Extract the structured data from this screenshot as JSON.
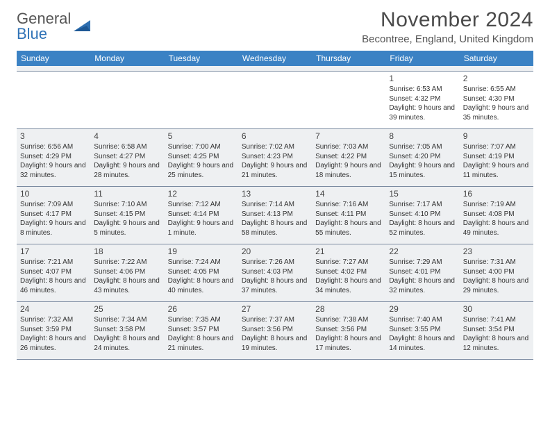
{
  "brand": {
    "line1": "General",
    "line2": "Blue",
    "triangle_color": "#2f6fb0"
  },
  "header": {
    "month_title": "November 2024",
    "location": "Becontree, England, United Kingdom"
  },
  "style": {
    "header_bg": "#3b82c4",
    "header_text": "#ffffff",
    "shaded_bg": "#eef0f2",
    "border_color": "#7a8aa0",
    "text_color": "#333333",
    "title_color": "#4a4a4a"
  },
  "weekdays": [
    "Sunday",
    "Monday",
    "Tuesday",
    "Wednesday",
    "Thursday",
    "Friday",
    "Saturday"
  ],
  "weeks": [
    [
      {
        "blank": true
      },
      {
        "blank": true
      },
      {
        "blank": true
      },
      {
        "blank": true
      },
      {
        "blank": true
      },
      {
        "n": "1",
        "sr": "Sunrise: 6:53 AM",
        "ss": "Sunset: 4:32 PM",
        "dl": "Daylight: 9 hours and 39 minutes."
      },
      {
        "n": "2",
        "sr": "Sunrise: 6:55 AM",
        "ss": "Sunset: 4:30 PM",
        "dl": "Daylight: 9 hours and 35 minutes."
      }
    ],
    [
      {
        "n": "3",
        "sr": "Sunrise: 6:56 AM",
        "ss": "Sunset: 4:29 PM",
        "dl": "Daylight: 9 hours and 32 minutes.",
        "shade": true
      },
      {
        "n": "4",
        "sr": "Sunrise: 6:58 AM",
        "ss": "Sunset: 4:27 PM",
        "dl": "Daylight: 9 hours and 28 minutes.",
        "shade": true
      },
      {
        "n": "5",
        "sr": "Sunrise: 7:00 AM",
        "ss": "Sunset: 4:25 PM",
        "dl": "Daylight: 9 hours and 25 minutes.",
        "shade": true
      },
      {
        "n": "6",
        "sr": "Sunrise: 7:02 AM",
        "ss": "Sunset: 4:23 PM",
        "dl": "Daylight: 9 hours and 21 minutes.",
        "shade": true
      },
      {
        "n": "7",
        "sr": "Sunrise: 7:03 AM",
        "ss": "Sunset: 4:22 PM",
        "dl": "Daylight: 9 hours and 18 minutes.",
        "shade": true
      },
      {
        "n": "8",
        "sr": "Sunrise: 7:05 AM",
        "ss": "Sunset: 4:20 PM",
        "dl": "Daylight: 9 hours and 15 minutes.",
        "shade": true
      },
      {
        "n": "9",
        "sr": "Sunrise: 7:07 AM",
        "ss": "Sunset: 4:19 PM",
        "dl": "Daylight: 9 hours and 11 minutes.",
        "shade": true
      }
    ],
    [
      {
        "n": "10",
        "sr": "Sunrise: 7:09 AM",
        "ss": "Sunset: 4:17 PM",
        "dl": "Daylight: 9 hours and 8 minutes.",
        "shade": true
      },
      {
        "n": "11",
        "sr": "Sunrise: 7:10 AM",
        "ss": "Sunset: 4:15 PM",
        "dl": "Daylight: 9 hours and 5 minutes.",
        "shade": true
      },
      {
        "n": "12",
        "sr": "Sunrise: 7:12 AM",
        "ss": "Sunset: 4:14 PM",
        "dl": "Daylight: 9 hours and 1 minute.",
        "shade": true
      },
      {
        "n": "13",
        "sr": "Sunrise: 7:14 AM",
        "ss": "Sunset: 4:13 PM",
        "dl": "Daylight: 8 hours and 58 minutes.",
        "shade": true
      },
      {
        "n": "14",
        "sr": "Sunrise: 7:16 AM",
        "ss": "Sunset: 4:11 PM",
        "dl": "Daylight: 8 hours and 55 minutes.",
        "shade": true
      },
      {
        "n": "15",
        "sr": "Sunrise: 7:17 AM",
        "ss": "Sunset: 4:10 PM",
        "dl": "Daylight: 8 hours and 52 minutes.",
        "shade": true
      },
      {
        "n": "16",
        "sr": "Sunrise: 7:19 AM",
        "ss": "Sunset: 4:08 PM",
        "dl": "Daylight: 8 hours and 49 minutes.",
        "shade": true
      }
    ],
    [
      {
        "n": "17",
        "sr": "Sunrise: 7:21 AM",
        "ss": "Sunset: 4:07 PM",
        "dl": "Daylight: 8 hours and 46 minutes.",
        "shade": true
      },
      {
        "n": "18",
        "sr": "Sunrise: 7:22 AM",
        "ss": "Sunset: 4:06 PM",
        "dl": "Daylight: 8 hours and 43 minutes.",
        "shade": true
      },
      {
        "n": "19",
        "sr": "Sunrise: 7:24 AM",
        "ss": "Sunset: 4:05 PM",
        "dl": "Daylight: 8 hours and 40 minutes.",
        "shade": true
      },
      {
        "n": "20",
        "sr": "Sunrise: 7:26 AM",
        "ss": "Sunset: 4:03 PM",
        "dl": "Daylight: 8 hours and 37 minutes.",
        "shade": true
      },
      {
        "n": "21",
        "sr": "Sunrise: 7:27 AM",
        "ss": "Sunset: 4:02 PM",
        "dl": "Daylight: 8 hours and 34 minutes.",
        "shade": true
      },
      {
        "n": "22",
        "sr": "Sunrise: 7:29 AM",
        "ss": "Sunset: 4:01 PM",
        "dl": "Daylight: 8 hours and 32 minutes.",
        "shade": true
      },
      {
        "n": "23",
        "sr": "Sunrise: 7:31 AM",
        "ss": "Sunset: 4:00 PM",
        "dl": "Daylight: 8 hours and 29 minutes.",
        "shade": true
      }
    ],
    [
      {
        "n": "24",
        "sr": "Sunrise: 7:32 AM",
        "ss": "Sunset: 3:59 PM",
        "dl": "Daylight: 8 hours and 26 minutes.",
        "shade": true
      },
      {
        "n": "25",
        "sr": "Sunrise: 7:34 AM",
        "ss": "Sunset: 3:58 PM",
        "dl": "Daylight: 8 hours and 24 minutes.",
        "shade": true
      },
      {
        "n": "26",
        "sr": "Sunrise: 7:35 AM",
        "ss": "Sunset: 3:57 PM",
        "dl": "Daylight: 8 hours and 21 minutes.",
        "shade": true
      },
      {
        "n": "27",
        "sr": "Sunrise: 7:37 AM",
        "ss": "Sunset: 3:56 PM",
        "dl": "Daylight: 8 hours and 19 minutes.",
        "shade": true
      },
      {
        "n": "28",
        "sr": "Sunrise: 7:38 AM",
        "ss": "Sunset: 3:56 PM",
        "dl": "Daylight: 8 hours and 17 minutes.",
        "shade": true
      },
      {
        "n": "29",
        "sr": "Sunrise: 7:40 AM",
        "ss": "Sunset: 3:55 PM",
        "dl": "Daylight: 8 hours and 14 minutes.",
        "shade": true
      },
      {
        "n": "30",
        "sr": "Sunrise: 7:41 AM",
        "ss": "Sunset: 3:54 PM",
        "dl": "Daylight: 8 hours and 12 minutes.",
        "shade": true
      }
    ]
  ]
}
